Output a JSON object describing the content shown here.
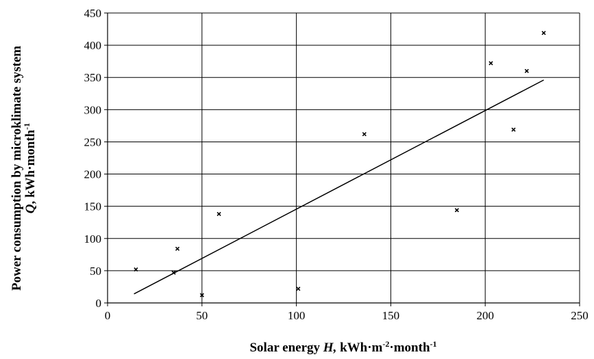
{
  "chart_data": {
    "type": "scatter",
    "ylabel_line1": "Power consumption by microklimate system",
    "ylabel_line2_var": "Q",
    "ylabel_line2_unit": ", kWh·month",
    "ylabel_line2_sup": "-1",
    "xlabel_prefix": "Solar energy ",
    "xlabel_var": "H,",
    "xlabel_unit_a": " kWh·m",
    "xlabel_sup_a": "-2",
    "xlabel_unit_b": "·month",
    "xlabel_sup_b": "-1",
    "xlim": [
      0,
      250
    ],
    "ylim": [
      0,
      450
    ],
    "xticks": [
      0,
      50,
      100,
      150,
      200,
      250
    ],
    "yticks": [
      0,
      50,
      100,
      150,
      200,
      250,
      300,
      350,
      400,
      450
    ],
    "grid": true,
    "points": [
      {
        "x": 15,
        "y": 52
      },
      {
        "x": 35,
        "y": 47
      },
      {
        "x": 37,
        "y": 84
      },
      {
        "x": 50,
        "y": 12
      },
      {
        "x": 59,
        "y": 138
      },
      {
        "x": 101,
        "y": 22
      },
      {
        "x": 136,
        "y": 262
      },
      {
        "x": 185,
        "y": 144
      },
      {
        "x": 203,
        "y": 372
      },
      {
        "x": 215,
        "y": 269
      },
      {
        "x": 222,
        "y": 360
      },
      {
        "x": 231,
        "y": 419
      }
    ],
    "trendline": {
      "x": [
        14,
        231
      ],
      "y": [
        14,
        346
      ]
    }
  }
}
